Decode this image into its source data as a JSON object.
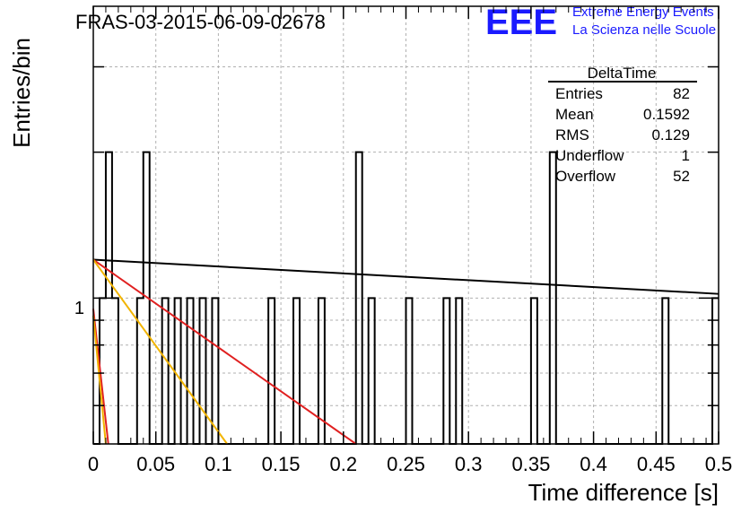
{
  "chart_data": {
    "type": "histogram",
    "title": "FRAS-03-2015-06-09-02678",
    "xlabel": "Time difference [s]",
    "ylabel": "Entries/bin",
    "xlim": [
      0,
      0.5
    ],
    "ylim_log": [
      0.5,
      4
    ],
    "y_scale": "log",
    "grid": true,
    "x_ticks": [
      "0",
      "0.05",
      "0.1",
      "0.15",
      "0.2",
      "0.25",
      "0.3",
      "0.35",
      "0.4",
      "0.45",
      "0.5"
    ],
    "x_tick_values": [
      0,
      0.05,
      0.1,
      0.15,
      0.2,
      0.25,
      0.3,
      0.35,
      0.4,
      0.45,
      0.5
    ],
    "y_tick_labels": [
      "1"
    ],
    "bin_width": 0.005,
    "bins": [
      {
        "x": 0.005,
        "count": 1
      },
      {
        "x": 0.01,
        "count": 2
      },
      {
        "x": 0.015,
        "count": 1
      },
      {
        "x": 0.035,
        "count": 1
      },
      {
        "x": 0.04,
        "count": 2
      },
      {
        "x": 0.055,
        "count": 1
      },
      {
        "x": 0.065,
        "count": 1
      },
      {
        "x": 0.075,
        "count": 1
      },
      {
        "x": 0.085,
        "count": 1
      },
      {
        "x": 0.095,
        "count": 1
      },
      {
        "x": 0.14,
        "count": 1
      },
      {
        "x": 0.16,
        "count": 1
      },
      {
        "x": 0.18,
        "count": 1
      },
      {
        "x": 0.21,
        "count": 2
      },
      {
        "x": 0.22,
        "count": 1
      },
      {
        "x": 0.25,
        "count": 1
      },
      {
        "x": 0.28,
        "count": 1
      },
      {
        "x": 0.29,
        "count": 1
      },
      {
        "x": 0.35,
        "count": 1
      },
      {
        "x": 0.365,
        "count": 2
      },
      {
        "x": 0.455,
        "count": 1
      },
      {
        "x": 0.495,
        "count": 1
      }
    ],
    "fit_lines": [
      {
        "color": "#000000",
        "x": [
          0,
          0.5
        ],
        "y": [
          1.2,
          1.02
        ]
      },
      {
        "color": "#e02020",
        "x": [
          0,
          0.21
        ],
        "y": [
          1.2,
          0.5
        ]
      },
      {
        "color": "#f2b400",
        "x": [
          0,
          0.107
        ],
        "y": [
          1.2,
          0.5
        ]
      },
      {
        "color": "#e02020",
        "x": [
          0,
          0.012
        ],
        "y": [
          0.95,
          0.5
        ]
      },
      {
        "color": "#f2b400",
        "x": [
          0,
          0.01
        ],
        "y": [
          0.92,
          0.5
        ]
      }
    ]
  },
  "stats_box": {
    "title": "DeltaTime",
    "rows": [
      {
        "label": "Entries",
        "value": "82"
      },
      {
        "label": "Mean",
        "value": "0.1592"
      },
      {
        "label": "RMS",
        "value": "0.129"
      },
      {
        "label": "Underflow",
        "value": "1"
      },
      {
        "label": "Overflow",
        "value": "52"
      }
    ]
  },
  "logo": {
    "mark": "EEE",
    "line1": "Extreme Energy Events",
    "line2": "La Scienza nelle Scuole",
    "color": "#1a1aff"
  }
}
